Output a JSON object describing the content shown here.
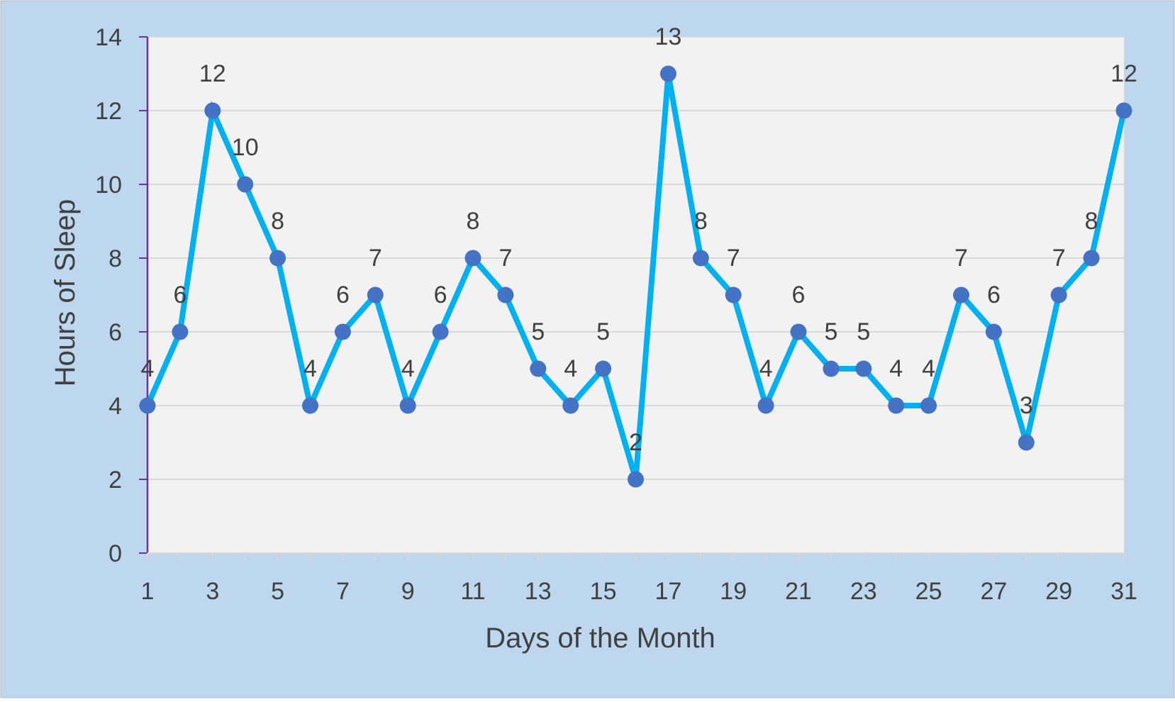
{
  "chart_data": {
    "type": "line",
    "title": "",
    "xlabel": "Days of the Month",
    "ylabel": "Hours of Sleep",
    "x": [
      1,
      2,
      3,
      4,
      5,
      6,
      7,
      8,
      9,
      10,
      11,
      12,
      13,
      14,
      15,
      16,
      17,
      18,
      19,
      20,
      21,
      22,
      23,
      24,
      25,
      26,
      27,
      28,
      29,
      30,
      31
    ],
    "x_tick_labels": [
      "1",
      "3",
      "5",
      "7",
      "9",
      "11",
      "13",
      "15",
      "17",
      "19",
      "21",
      "23",
      "25",
      "27",
      "29",
      "31"
    ],
    "y_ticks": [
      0,
      2,
      4,
      6,
      8,
      10,
      12,
      14
    ],
    "ylim": [
      0,
      14
    ],
    "grid": true,
    "series": [
      {
        "values": [
          4,
          6,
          12,
          10,
          8,
          4,
          6,
          7,
          4,
          6,
          8,
          7,
          5,
          4,
          5,
          2,
          13,
          8,
          7,
          4,
          6,
          5,
          5,
          4,
          4,
          7,
          6,
          3,
          7,
          8,
          12
        ],
        "data_labels": true
      }
    ],
    "colors": {
      "frame_background": "#bdd7ee",
      "plot_background": "#f2f2f2",
      "gridline": "#d9d9d9",
      "line": "#00b0f0",
      "marker": "#4472c4",
      "y_axis": "#7030a0",
      "text": "#404040"
    }
  }
}
